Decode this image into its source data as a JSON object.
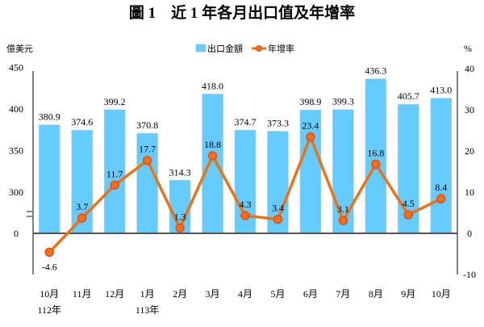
{
  "chart_data": {
    "type": "bar+line",
    "title": "圖 1　近 1 年各月出口值及年增率",
    "y_left_label": "億美元",
    "y_right_label": "%",
    "y_left_ticks": [
      "450",
      "400",
      "350",
      "300",
      "0"
    ],
    "y_left_tick_values": [
      450,
      400,
      350,
      300,
      0
    ],
    "y_left_break": "axis broken between 0 and 300",
    "y_right_ticks": [
      "40",
      "30",
      "20",
      "10",
      "0",
      "-10"
    ],
    "y_right_tick_values": [
      40,
      30,
      20,
      10,
      0,
      -10
    ],
    "y_right_range": [
      -10,
      40
    ],
    "categories": [
      "10月",
      "11月",
      "12月",
      "1月",
      "2月",
      "3月",
      "4月",
      "5月",
      "6月",
      "7月",
      "8月",
      "9月",
      "10月"
    ],
    "category_sublabels": [
      "112年",
      "",
      "",
      "113年",
      "",
      "",
      "",
      "",
      "",
      "",
      "",
      "",
      ""
    ],
    "series": [
      {
        "name": "出口金額",
        "type": "bar",
        "axis": "left",
        "color": "#66ccff",
        "values": [
          380.9,
          374.6,
          399.2,
          370.8,
          314.3,
          418.0,
          374.7,
          373.3,
          398.9,
          399.3,
          436.3,
          405.7,
          413.0
        ],
        "labels": [
          "380.9",
          "374.6",
          "399.2",
          "370.8",
          "314.3",
          "418.0",
          "374.7",
          "373.3",
          "398.9",
          "399.3",
          "436.3",
          "405.7",
          "413.0"
        ]
      },
      {
        "name": "年增率",
        "type": "line",
        "axis": "right",
        "color": "#e8731a",
        "marker_color": "#f04a1a",
        "values": [
          -4.6,
          3.7,
          11.7,
          17.7,
          1.3,
          18.8,
          4.3,
          3.4,
          23.4,
          3.1,
          16.8,
          4.5,
          8.4
        ],
        "labels": [
          "-4.6",
          "3.7",
          "11.7",
          "17.7",
          "1.3",
          "18.8",
          "4.3",
          "3.4",
          "23.4",
          "3.1",
          "16.8",
          "4.5",
          "8.4"
        ]
      }
    ],
    "legend_position": "top-center"
  }
}
